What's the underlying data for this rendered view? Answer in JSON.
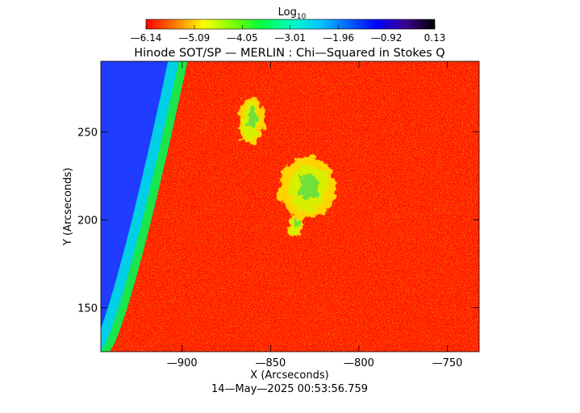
{
  "chart_data": {
    "type": "heatmap",
    "title": "Hinode SOT/SP — MERLIN : Chi—Squared in Stokes Q",
    "xlabel": "X (Arcseconds)",
    "ylabel": "Y (Arcseconds)",
    "xlim": [
      -946,
      -732
    ],
    "ylim": [
      125,
      290
    ],
    "x_ticks": [
      -900,
      -850,
      -800,
      -750
    ],
    "x_tick_labels": [
      "—900",
      "—850",
      "—800",
      "—750"
    ],
    "y_ticks": [
      150,
      200,
      250
    ],
    "y_tick_labels": [
      "150",
      "200",
      "250"
    ],
    "colorbar": {
      "label_base": "Log",
      "label_sub": "10",
      "min": -6.14,
      "max": 0.13,
      "ticks": [
        -6.14,
        -5.09,
        -4.05,
        -3.01,
        -1.96,
        -0.92,
        0.13
      ],
      "tick_labels": [
        "—6.14",
        "—5.09",
        "—4.05",
        "—3.01",
        "—1.96",
        "—0.92",
        "0.13"
      ],
      "colors": [
        "#ff0000",
        "#ff7a00",
        "#ffff00",
        "#7fff00",
        "#00ff40",
        "#00ffc0",
        "#00c8ff",
        "#0064ff",
        "#0000ff",
        "#3c0090",
        "#000000"
      ]
    },
    "background_level": -6.14,
    "limb_band_levels": [
      -3.0,
      -2.3,
      -1.3
    ],
    "active_regions": [
      {
        "x": -861,
        "y": 256,
        "level": -4.8
      },
      {
        "x": -829,
        "y": 218,
        "level": -4.6
      },
      {
        "x": -836,
        "y": 196,
        "level": -5.4
      }
    ],
    "grid": false,
    "legend": "none",
    "timestamp": "14—May—2025 00:53:56.759"
  }
}
